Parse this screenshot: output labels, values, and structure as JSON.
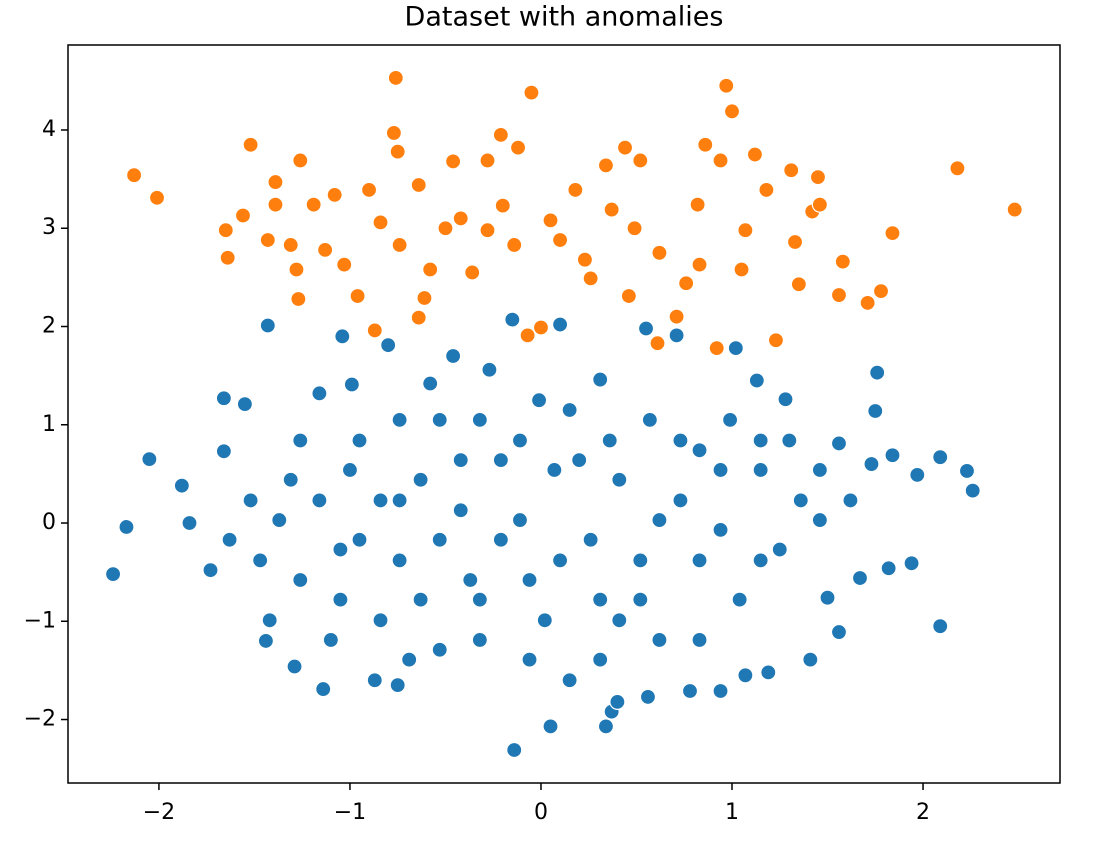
{
  "chart_data": {
    "type": "scatter",
    "title": "Dataset with anomalies",
    "xlim": [
      -2.476,
      2.717
    ],
    "ylim": [
      -2.646,
      4.865
    ],
    "xticks": [
      {
        "value": -2,
        "label": "−2"
      },
      {
        "value": -1,
        "label": "−1"
      },
      0,
      1,
      2
    ],
    "yticks": [
      {
        "value": -2,
        "label": "−2"
      },
      {
        "value": -1,
        "label": "−1"
      },
      0,
      1,
      2,
      3,
      4
    ],
    "grid": false,
    "series": [
      {
        "color": "#1f77b4",
        "x": [
          -2.24,
          -2.17,
          -2.05,
          -1.88,
          -1.84,
          -1.73,
          -1.66,
          -1.66,
          -1.43,
          -1.55,
          -1.14,
          -1.29,
          -1.44,
          -1.04,
          -0.8,
          -0.75,
          -0.87,
          -0.14,
          0.05,
          0.34,
          0.37,
          0.4,
          0.56,
          0.78,
          0.94,
          1.07,
          1.19,
          1.41,
          1.56,
          1.5,
          1.67,
          1.82,
          1.94,
          2.09,
          1.97,
          2.09,
          2.23,
          2.26,
          1.84,
          1.73,
          1.76,
          1.75,
          1.56,
          1.28,
          1.13,
          1.02,
          0.71,
          0.55,
          0.1,
          -0.15,
          -0.46,
          -0.27,
          -0.58,
          -1.16,
          -0.99,
          -1.26,
          -1.16,
          -1.37,
          -1.47,
          -1.0,
          -0.95,
          -1.05,
          -0.84,
          -0.74,
          -0.63,
          -0.53,
          -0.42,
          -0.37,
          -0.32,
          -0.21,
          -0.11,
          -0.06,
          0.02,
          0.07,
          0.15,
          0.26,
          0.31,
          0.41,
          0.52,
          0.62,
          0.73,
          0.83,
          0.94,
          1.04,
          1.15,
          1.25,
          1.36,
          1.46,
          -1.52,
          -1.63,
          -1.42,
          -1.26,
          -1.1,
          -0.69,
          -0.53,
          -0.06,
          0.15,
          0.31,
          0.83,
          0.57,
          0.31,
          -0.01,
          -0.32,
          -0.74,
          -0.95,
          -1.31,
          0.41,
          0.1,
          -0.21,
          -0.53,
          -0.84,
          0.62,
          0.94,
          1.15,
          1.3,
          0.83,
          0.52,
          -0.32,
          -0.63,
          -1.05,
          -0.74,
          -0.42,
          -0.11,
          0.2,
          0.36,
          0.73,
          0.99,
          1.15,
          1.46,
          1.62
        ],
        "values": [
          -0.52,
          -0.04,
          0.65,
          0.38,
          0.0,
          -0.48,
          0.73,
          1.27,
          2.01,
          1.21,
          -1.69,
          -1.46,
          -1.2,
          1.9,
          1.81,
          -1.65,
          -1.6,
          -2.31,
          -2.07,
          -2.07,
          -1.92,
          -1.82,
          -1.77,
          -1.71,
          -1.71,
          -1.55,
          -1.52,
          -1.39,
          -1.11,
          -0.76,
          -0.56,
          -0.46,
          -0.41,
          -1.05,
          0.49,
          0.67,
          0.53,
          0.33,
          0.69,
          0.6,
          1.53,
          1.14,
          0.81,
          1.26,
          1.45,
          1.78,
          1.91,
          1.98,
          2.02,
          2.07,
          1.7,
          1.56,
          1.42,
          1.32,
          1.41,
          0.84,
          0.23,
          0.03,
          -0.38,
          0.54,
          -0.17,
          -0.78,
          -0.99,
          -0.38,
          0.44,
          1.05,
          0.13,
          -0.58,
          -1.19,
          0.64,
          0.03,
          -0.58,
          -0.99,
          0.54,
          1.15,
          -0.17,
          -0.78,
          0.44,
          -0.38,
          -1.19,
          0.23,
          0.74,
          -0.07,
          -0.78,
          0.54,
          -0.27,
          0.23,
          0.03,
          0.23,
          -0.17,
          -0.99,
          -0.58,
          -1.19,
          -1.39,
          -1.29,
          -1.39,
          -1.6,
          -1.39,
          -1.19,
          1.05,
          1.46,
          1.25,
          1.05,
          1.05,
          0.84,
          0.44,
          -0.99,
          -0.38,
          -0.17,
          -0.17,
          0.23,
          0.03,
          0.54,
          -0.38,
          0.84,
          -0.38,
          -0.78,
          -0.78,
          -0.78,
          -0.27,
          0.23,
          0.64,
          0.84,
          0.64,
          0.84,
          0.84,
          1.05,
          0.84,
          0.54,
          0.23
        ]
      },
      {
        "color": "#ff7f0e",
        "x": [
          -2.13,
          -2.01,
          -0.76,
          -0.05,
          0.97,
          1.0,
          2.18,
          2.48,
          -1.52,
          -1.65,
          -1.64,
          -1.56,
          -1.43,
          -1.39,
          -1.28,
          -1.26,
          -1.27,
          -1.19,
          -1.08,
          -0.96,
          -0.87,
          -0.9,
          -0.77,
          -0.75,
          -0.64,
          -0.64,
          -0.61,
          -0.5,
          -0.46,
          -0.36,
          -0.28,
          -0.21,
          -0.2,
          -0.12,
          -0.07,
          0.0,
          0.05,
          0.18,
          0.26,
          0.37,
          0.44,
          0.49,
          0.46,
          0.61,
          0.71,
          0.82,
          0.86,
          0.92,
          0.94,
          1.07,
          1.12,
          1.23,
          1.33,
          1.35,
          1.45,
          1.42,
          1.58,
          1.56,
          1.71,
          1.78,
          1.84,
          1.18,
          1.31,
          0.62,
          0.76,
          0.23,
          0.1,
          -0.14,
          -0.28,
          -0.42,
          -0.58,
          -0.74,
          -0.84,
          -1.03,
          -1.13,
          -1.31,
          -1.39,
          0.34,
          0.52,
          0.83,
          1.05,
          1.46
        ],
        "values": [
          3.54,
          3.31,
          4.53,
          4.38,
          4.45,
          4.19,
          3.61,
          3.19,
          3.85,
          2.98,
          2.7,
          3.13,
          2.88,
          3.47,
          2.58,
          3.69,
          2.28,
          3.24,
          3.34,
          2.31,
          1.96,
          3.39,
          3.97,
          3.78,
          3.44,
          2.09,
          2.29,
          3.0,
          3.68,
          2.55,
          3.69,
          3.95,
          3.23,
          3.82,
          1.91,
          1.99,
          3.08,
          3.39,
          2.49,
          3.19,
          3.82,
          3.0,
          2.31,
          1.83,
          2.1,
          3.24,
          3.85,
          1.78,
          3.69,
          2.98,
          3.75,
          1.86,
          2.86,
          2.43,
          3.52,
          3.17,
          2.66,
          2.32,
          2.24,
          2.36,
          2.95,
          3.39,
          3.59,
          2.75,
          2.44,
          2.68,
          2.88,
          2.83,
          2.98,
          3.1,
          2.58,
          2.83,
          3.06,
          2.63,
          2.78,
          2.83,
          3.24,
          3.64,
          3.69,
          2.63,
          2.58,
          3.24
        ]
      }
    ]
  }
}
